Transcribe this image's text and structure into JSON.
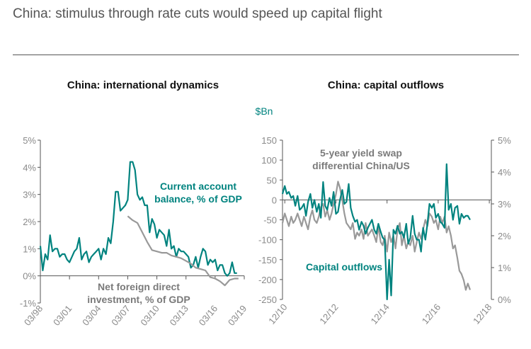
{
  "page": {
    "title": "China: stimulus through rate cuts would speed up capital flight"
  },
  "colors": {
    "teal": "#00837f",
    "grey": "#999999",
    "axis": "#555555",
    "tick_text": "#8a8a8a"
  },
  "chart_data": [
    {
      "type": "line",
      "title": "China: international dynamics",
      "ylim": [
        -1,
        5
      ],
      "y_ticks": [
        "5%",
        "4%",
        "3%",
        "2%",
        "1%",
        "0%",
        "-1%"
      ],
      "x_ticks": [
        "03/98",
        "03/01",
        "03/04",
        "03/07",
        "03/10",
        "03/13",
        "03/16",
        "03/19"
      ],
      "series": [
        {
          "name": "Current account balance, % of GDP",
          "label_lines": [
            "Current account",
            "balance, % of GDP"
          ],
          "color": "teal",
          "x": [
            1998.0,
            1998.25,
            1998.5,
            1998.75,
            1999.0,
            1999.25,
            1999.5,
            1999.75,
            2000.0,
            2000.25,
            2000.5,
            2000.75,
            2001.0,
            2001.25,
            2001.5,
            2001.75,
            2002.0,
            2002.25,
            2002.5,
            2002.75,
            2003.0,
            2003.25,
            2003.5,
            2003.75,
            2004.0,
            2004.25,
            2004.5,
            2004.75,
            2005.0,
            2005.25,
            2005.5,
            2005.75,
            2006.0,
            2006.25,
            2006.5,
            2006.75,
            2007.0,
            2007.25,
            2007.5,
            2007.75,
            2008.0,
            2008.25,
            2008.5,
            2008.75,
            2009.0,
            2009.25,
            2009.5,
            2009.75,
            2010.0,
            2010.25,
            2010.5,
            2010.75,
            2011.0,
            2011.25,
            2011.5,
            2011.75,
            2012.0,
            2012.25,
            2012.5,
            2012.75,
            2013.0,
            2013.25,
            2013.5,
            2013.75,
            2014.0,
            2014.25,
            2014.5,
            2014.75,
            2015.0,
            2015.25,
            2015.5,
            2015.75,
            2016.0,
            2016.25,
            2016.5,
            2016.75,
            2017.0,
            2017.25,
            2017.5,
            2017.75,
            2018.0,
            2018.25
          ],
          "values": [
            1.1,
            0.2,
            0.8,
            0.6,
            1.5,
            0.9,
            1.0,
            1.0,
            0.7,
            0.8,
            0.8,
            0.6,
            0.5,
            0.7,
            0.9,
            1.0,
            1.4,
            0.6,
            0.8,
            0.9,
            0.5,
            0.7,
            0.8,
            0.9,
            1.0,
            0.6,
            1.0,
            0.8,
            1.4,
            1.2,
            2.0,
            3.1,
            3.1,
            2.4,
            2.5,
            2.6,
            2.8,
            4.2,
            4.2,
            3.9,
            3.0,
            2.8,
            2.9,
            2.6,
            2.6,
            1.6,
            2.1,
            1.9,
            1.4,
            1.7,
            1.6,
            1.5,
            1.1,
            1.7,
            1.0,
            1.1,
            0.7,
            1.0,
            0.9,
            0.9,
            0.8,
            0.7,
            0.3,
            0.4,
            0.7,
            0.3,
            0.7,
            1.0,
            0.9,
            0.4,
            0.6,
            0.5,
            0.6,
            0.2,
            0.4,
            0.4,
            0.1,
            0.0,
            0.1,
            0.5,
            0.1,
            0.1
          ]
        },
        {
          "name": "Net foreign direct investment, % of GDP",
          "label_lines": [
            "Net foreign direct",
            "investment, % of GDP"
          ],
          "color": "grey",
          "x": [
            2007.0,
            2007.5,
            2008.0,
            2008.5,
            2009.0,
            2009.5,
            2010.0,
            2010.5,
            2011.0,
            2011.5,
            2012.0,
            2012.5,
            2013.0,
            2013.5,
            2014.0,
            2014.5,
            2015.0,
            2015.5,
            2016.0,
            2016.5,
            2017.0,
            2017.5,
            2018.0,
            2018.4
          ],
          "values": [
            2.2,
            2.05,
            1.95,
            1.6,
            1.25,
            0.95,
            0.9,
            0.85,
            0.85,
            0.75,
            0.7,
            0.65,
            0.55,
            0.45,
            0.3,
            0.25,
            0.2,
            -0.05,
            -0.1,
            -0.2,
            -0.35,
            -0.15,
            -0.1,
            -0.1
          ]
        }
      ]
    },
    {
      "type": "line",
      "title": "China: capital outflows",
      "left_axis_unit": "$Bn",
      "ylim": [
        -250,
        150
      ],
      "y2lim": [
        0,
        5
      ],
      "y_ticks": [
        "150",
        "100",
        "50",
        "0",
        "-50",
        "-100",
        "-150",
        "-200",
        "-250"
      ],
      "y2_ticks": [
        "5%",
        "4%",
        "3%",
        "2%",
        "1%",
        "0%"
      ],
      "x_ticks": [
        "12/10",
        "12/12",
        "12/14",
        "12/16",
        "12/18"
      ],
      "series": [
        {
          "name": "Capital outflows",
          "label_lines": [
            "Capital outflows"
          ],
          "color": "teal",
          "axis": "left",
          "x": [
            2010.83,
            2010.92,
            2011.0,
            2011.08,
            2011.17,
            2011.25,
            2011.33,
            2011.42,
            2011.5,
            2011.58,
            2011.67,
            2011.75,
            2011.83,
            2011.92,
            2012.0,
            2012.08,
            2012.17,
            2012.25,
            2012.33,
            2012.42,
            2012.5,
            2012.58,
            2012.67,
            2012.75,
            2012.83,
            2012.92,
            2013.0,
            2013.08,
            2013.17,
            2013.25,
            2013.33,
            2013.42,
            2013.5,
            2013.58,
            2013.67,
            2013.75,
            2013.83,
            2013.92,
            2014.0,
            2014.08,
            2014.17,
            2014.25,
            2014.33,
            2014.42,
            2014.5,
            2014.58,
            2014.67,
            2014.75,
            2014.83,
            2014.92,
            2015.0,
            2015.08,
            2015.17,
            2015.25,
            2015.33,
            2015.42,
            2015.5,
            2015.58,
            2015.67,
            2015.75,
            2015.83,
            2015.92,
            2016.0,
            2016.08,
            2016.17,
            2016.25,
            2016.33,
            2016.42,
            2016.5,
            2016.58,
            2016.67,
            2016.75,
            2016.83,
            2016.92,
            2017.0,
            2017.08,
            2017.17,
            2017.25,
            2017.33,
            2017.42,
            2017.5,
            2017.58,
            2017.67,
            2017.75,
            2017.83,
            2017.92,
            2018.0,
            2018.08,
            2018.17
          ],
          "values": [
            15,
            35,
            15,
            20,
            5,
            10,
            -15,
            10,
            -25,
            -20,
            -10,
            -40,
            -5,
            15,
            -20,
            0,
            -30,
            -10,
            -45,
            45,
            -15,
            -25,
            5,
            -15,
            20,
            -35,
            -30,
            0,
            25,
            -10,
            -5,
            40,
            -20,
            -40,
            -55,
            -50,
            -75,
            -55,
            -65,
            -85,
            -70,
            -60,
            -50,
            -75,
            -85,
            -60,
            -80,
            -95,
            -100,
            -250,
            -150,
            -240,
            -75,
            -85,
            -65,
            -85,
            -80,
            -95,
            -60,
            -110,
            -95,
            -40,
            -85,
            -100,
            -100,
            -130,
            -70,
            -100,
            -60,
            -10,
            -20,
            -10,
            -45,
            -35,
            -55,
            -60,
            -70,
            90,
            -25,
            -10,
            -50,
            -20,
            -15,
            -60,
            -35,
            -45,
            -40,
            -40,
            -50
          ]
        },
        {
          "name": "5-year yield swap differential China/US",
          "label_lines": [
            "5-year yield swap",
            "differential China/US"
          ],
          "color": "grey",
          "axis": "right",
          "x": [
            2010.83,
            2010.92,
            2011.0,
            2011.08,
            2011.17,
            2011.25,
            2011.33,
            2011.42,
            2011.5,
            2011.58,
            2011.67,
            2011.75,
            2011.83,
            2011.92,
            2012.0,
            2012.08,
            2012.17,
            2012.25,
            2012.33,
            2012.42,
            2012.5,
            2012.58,
            2012.67,
            2012.75,
            2012.83,
            2012.92,
            2013.0,
            2013.08,
            2013.17,
            2013.25,
            2013.33,
            2013.42,
            2013.5,
            2013.58,
            2013.67,
            2013.75,
            2013.83,
            2013.92,
            2014.0,
            2014.08,
            2014.17,
            2014.25,
            2014.33,
            2014.42,
            2014.5,
            2014.58,
            2014.67,
            2014.75,
            2014.83,
            2014.92,
            2015.0,
            2015.08,
            2015.17,
            2015.25,
            2015.33,
            2015.42,
            2015.5,
            2015.58,
            2015.67,
            2015.75,
            2015.83,
            2015.92,
            2016.0,
            2016.08,
            2016.17,
            2016.25,
            2016.33,
            2016.42,
            2016.5,
            2016.58,
            2016.67,
            2016.75,
            2016.83,
            2016.92,
            2017.0,
            2017.08,
            2017.17,
            2017.25,
            2017.33,
            2017.42,
            2017.5,
            2017.58,
            2017.67,
            2017.75,
            2017.83,
            2017.92,
            2018.0,
            2018.08,
            2018.17
          ],
          "values": [
            2.4,
            2.7,
            2.5,
            2.3,
            2.6,
            2.4,
            2.5,
            2.7,
            2.5,
            2.3,
            2.6,
            2.4,
            2.2,
            2.6,
            2.8,
            2.5,
            2.4,
            2.6,
            2.9,
            3.0,
            2.6,
            2.8,
            2.5,
            2.7,
            3.0,
            3.3,
            3.7,
            3.5,
            3.1,
            2.7,
            2.4,
            2.3,
            2.2,
            2.4,
            1.9,
            2.1,
            2.0,
            2.2,
            1.9,
            2.4,
            2.0,
            2.1,
            2.2,
            2.0,
            1.8,
            2.3,
            1.8,
            1.7,
            2.0,
            1.5,
            2.1,
            1.8,
            2.0,
            1.6,
            2.2,
            2.4,
            1.7,
            2.0,
            1.6,
            1.8,
            1.7,
            2.0,
            1.5,
            1.8,
            2.1,
            1.9,
            2.2,
            2.5,
            2.3,
            2.7,
            2.6,
            2.4,
            2.5,
            2.2,
            2.6,
            2.4,
            2.6,
            2.1,
            2.3,
            2.0,
            1.6,
            1.7,
            1.3,
            0.9,
            0.8,
            0.6,
            0.3,
            0.5,
            0.3
          ]
        }
      ]
    }
  ]
}
